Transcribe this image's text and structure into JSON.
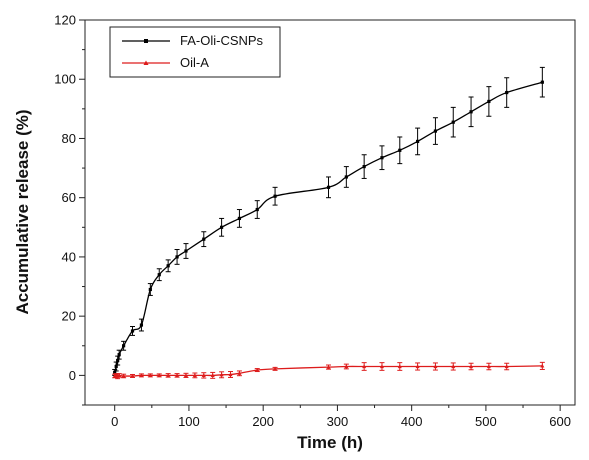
{
  "chart_data": {
    "type": "line",
    "title": "",
    "xlabel": "Time (h)",
    "ylabel": "Accumulative release (%)",
    "xlim": [
      -40,
      620
    ],
    "ylim": [
      -10,
      120
    ],
    "xticks": [
      0,
      100,
      200,
      300,
      400,
      500,
      600
    ],
    "yticks": [
      0,
      20,
      40,
      60,
      80,
      100,
      120
    ],
    "xtick_labels": [
      "0",
      "100",
      "200",
      "300",
      "400",
      "500",
      "600"
    ],
    "ytick_labels": [
      "0",
      "20",
      "40",
      "60",
      "80",
      "100",
      "120"
    ],
    "grid": false,
    "legend_position": "top-left",
    "series": [
      {
        "name": "FA-Oli-CSNPs",
        "color": "#000000",
        "marker": "square",
        "x": [
          0,
          2,
          4,
          6,
          12,
          24,
          36,
          48,
          60,
          72,
          84,
          96,
          120,
          144,
          168,
          192,
          216,
          288,
          312,
          336,
          360,
          384,
          408,
          432,
          456,
          480,
          504,
          528,
          576
        ],
        "y": [
          1,
          3,
          5,
          7,
          10,
          15,
          17,
          29,
          34,
          37,
          40,
          42,
          46,
          50,
          53,
          56,
          60.5,
          63.5,
          67,
          70.5,
          73.5,
          76,
          79,
          82.5,
          85.5,
          89,
          92.5,
          95.5,
          99
        ],
        "error": [
          1,
          1.5,
          1.5,
          1.5,
          1.5,
          1.5,
          2,
          2,
          2,
          2,
          2.5,
          2.5,
          2.5,
          3,
          3,
          3,
          3,
          3.5,
          3.5,
          4,
          4,
          4.5,
          4.5,
          4.5,
          5,
          5,
          5,
          5,
          5
        ]
      },
      {
        "name": "Oil-A",
        "color": "#dd1c1c",
        "marker": "triangle",
        "x": [
          0,
          2,
          4,
          6,
          12,
          24,
          36,
          48,
          60,
          72,
          84,
          96,
          108,
          120,
          132,
          144,
          156,
          168,
          192,
          216,
          288,
          312,
          336,
          360,
          384,
          408,
          432,
          456,
          480,
          504,
          528,
          576
        ],
        "y": [
          -0.2,
          0,
          -0.3,
          0,
          -0.2,
          -0.2,
          0,
          0,
          0,
          0,
          0,
          0,
          0,
          0,
          0,
          0.2,
          0.3,
          0.7,
          1.8,
          2.2,
          2.8,
          3,
          3,
          3,
          3,
          3,
          3,
          3,
          3,
          3,
          3,
          3.2
        ],
        "error": [
          0.6,
          0.6,
          0.8,
          0.6,
          0.6,
          0.5,
          0.5,
          0.5,
          0.5,
          0.6,
          0.6,
          0.7,
          0.8,
          0.9,
          1,
          1,
          1,
          0.8,
          0.5,
          0.5,
          0.7,
          0.8,
          1.3,
          1.3,
          1.3,
          1.2,
          1.2,
          1.2,
          1.1,
          1.1,
          1.1,
          1.2
        ]
      }
    ]
  }
}
